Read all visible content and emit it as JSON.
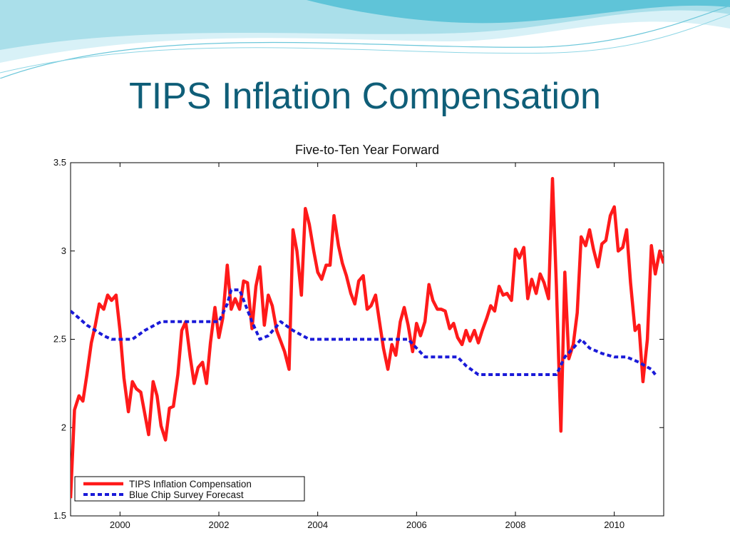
{
  "slide": {
    "title": "TIPS Inflation Compensation"
  },
  "colors": {
    "title": "#0f5e78",
    "tips_series": "#ff1a1a",
    "bluechip_series": "#1a1ad8",
    "wave_light": "#bfe8f2",
    "wave_dark": "#5fc4d8"
  },
  "chart_data": {
    "type": "line",
    "title": "Five-to-Ten Year Forward",
    "xlabel": "",
    "ylabel": "",
    "xlim": [
      1999.0,
      2011.0
    ],
    "ylim": [
      1.5,
      3.5
    ],
    "xticks": [
      2000,
      2002,
      2004,
      2006,
      2008,
      2010
    ],
    "yticks": [
      1.5,
      2,
      2.5,
      3,
      3.5
    ],
    "grid": false,
    "legend_position": "bottom-left",
    "series": [
      {
        "name": "TIPS Inflation Compensation",
        "style": "solid",
        "x": [
          1999.0,
          1999.08,
          1999.17,
          1999.25,
          1999.33,
          1999.42,
          1999.5,
          1999.58,
          1999.67,
          1999.75,
          1999.83,
          1999.92,
          2000.0,
          2000.08,
          2000.17,
          2000.25,
          2000.33,
          2000.42,
          2000.5,
          2000.58,
          2000.67,
          2000.75,
          2000.83,
          2000.92,
          2001.0,
          2001.08,
          2001.17,
          2001.25,
          2001.33,
          2001.42,
          2001.5,
          2001.58,
          2001.67,
          2001.75,
          2001.83,
          2001.92,
          2002.0,
          2002.08,
          2002.17,
          2002.25,
          2002.33,
          2002.42,
          2002.5,
          2002.58,
          2002.67,
          2002.75,
          2002.83,
          2002.92,
          2003.0,
          2003.08,
          2003.17,
          2003.25,
          2003.33,
          2003.42,
          2003.5,
          2003.58,
          2003.67,
          2003.75,
          2003.83,
          2003.92,
          2004.0,
          2004.08,
          2004.17,
          2004.25,
          2004.33,
          2004.42,
          2004.5,
          2004.58,
          2004.67,
          2004.75,
          2004.83,
          2004.92,
          2005.0,
          2005.08,
          2005.17,
          2005.25,
          2005.33,
          2005.42,
          2005.5,
          2005.58,
          2005.67,
          2005.75,
          2005.83,
          2005.92,
          2006.0,
          2006.08,
          2006.17,
          2006.25,
          2006.33,
          2006.42,
          2006.5,
          2006.58,
          2006.67,
          2006.75,
          2006.83,
          2006.92,
          2007.0,
          2007.08,
          2007.17,
          2007.25,
          2007.33,
          2007.42,
          2007.5,
          2007.58,
          2007.67,
          2007.75,
          2007.83,
          2007.92,
          2008.0,
          2008.08,
          2008.17,
          2008.25,
          2008.33,
          2008.42,
          2008.5,
          2008.58,
          2008.67,
          2008.75,
          2008.83,
          2008.92,
          2009.0,
          2009.08,
          2009.17,
          2009.25,
          2009.33,
          2009.42,
          2009.5,
          2009.58,
          2009.67,
          2009.75,
          2009.83,
          2009.92,
          2010.0,
          2010.08,
          2010.17,
          2010.25,
          2010.33,
          2010.42,
          2010.5,
          2010.58,
          2010.67,
          2010.75,
          2010.83,
          2010.92,
          2011.0
        ],
        "y": [
          1.6,
          2.1,
          2.18,
          2.15,
          2.3,
          2.48,
          2.58,
          2.7,
          2.67,
          2.75,
          2.72,
          2.75,
          2.55,
          2.28,
          2.09,
          2.26,
          2.22,
          2.2,
          2.08,
          1.96,
          2.26,
          2.18,
          2.01,
          1.93,
          2.11,
          2.12,
          2.3,
          2.55,
          2.6,
          2.4,
          2.25,
          2.34,
          2.37,
          2.25,
          2.48,
          2.68,
          2.51,
          2.62,
          2.92,
          2.67,
          2.73,
          2.67,
          2.83,
          2.82,
          2.56,
          2.8,
          2.91,
          2.58,
          2.75,
          2.69,
          2.55,
          2.49,
          2.43,
          2.33,
          3.12,
          3.0,
          2.75,
          3.24,
          3.15,
          3.0,
          2.88,
          2.84,
          2.92,
          2.92,
          3.2,
          3.03,
          2.93,
          2.86,
          2.76,
          2.7,
          2.83,
          2.86,
          2.67,
          2.69,
          2.75,
          2.6,
          2.45,
          2.33,
          2.47,
          2.41,
          2.6,
          2.68,
          2.58,
          2.43,
          2.59,
          2.52,
          2.6,
          2.81,
          2.72,
          2.67,
          2.67,
          2.66,
          2.56,
          2.59,
          2.51,
          2.47,
          2.55,
          2.49,
          2.55,
          2.48,
          2.55,
          2.62,
          2.69,
          2.66,
          2.8,
          2.75,
          2.76,
          2.72,
          3.01,
          2.96,
          3.02,
          2.73,
          2.84,
          2.76,
          2.87,
          2.82,
          2.73,
          3.41,
          2.8,
          1.98,
          2.88,
          2.39,
          2.47,
          2.65,
          3.08,
          3.03,
          3.12,
          3.01,
          2.91,
          3.04,
          3.06,
          3.2,
          3.25,
          3.0,
          3.02,
          3.12,
          2.82,
          2.55,
          2.58,
          2.26,
          2.5,
          3.03,
          2.87,
          3.0,
          2.93
        ]
      },
      {
        "name": "Blue Chip Survey Forecast",
        "style": "dashed",
        "x": [
          1999.0,
          1999.17,
          1999.33,
          1999.5,
          1999.67,
          1999.83,
          2000.0,
          2000.25,
          2000.5,
          2000.83,
          2001.0,
          2001.5,
          2001.83,
          2002.0,
          2002.17,
          2002.25,
          2002.42,
          2002.67,
          2002.83,
          2003.0,
          2003.25,
          2003.5,
          2003.83,
          2004.0,
          2004.5,
          2005.0,
          2005.5,
          2005.83,
          2006.0,
          2006.17,
          2006.5,
          2006.83,
          2007.0,
          2007.25,
          2007.5,
          2008.0,
          2008.5,
          2008.83,
          2009.0,
          2009.17,
          2009.33,
          2009.5,
          2009.75,
          2010.0,
          2010.25,
          2010.5,
          2010.75,
          2010.83
        ],
        "y": [
          2.66,
          2.62,
          2.58,
          2.55,
          2.52,
          2.5,
          2.5,
          2.5,
          2.55,
          2.6,
          2.6,
          2.6,
          2.6,
          2.6,
          2.7,
          2.78,
          2.78,
          2.6,
          2.5,
          2.52,
          2.6,
          2.55,
          2.5,
          2.5,
          2.5,
          2.5,
          2.5,
          2.5,
          2.45,
          2.4,
          2.4,
          2.4,
          2.35,
          2.3,
          2.3,
          2.3,
          2.3,
          2.3,
          2.4,
          2.45,
          2.5,
          2.45,
          2.42,
          2.4,
          2.4,
          2.37,
          2.33,
          2.3
        ]
      }
    ]
  }
}
